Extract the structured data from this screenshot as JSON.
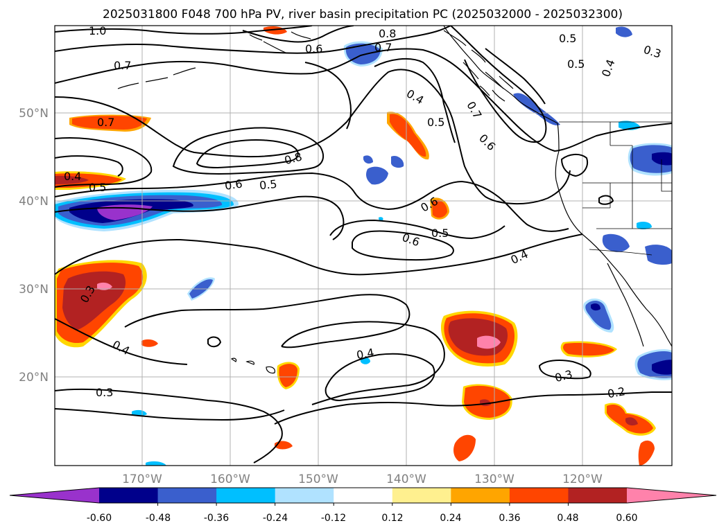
{
  "title": "2025031800 F048 700 hPa PV, river basin precipitation PC (2025032000 - 2025032300)",
  "longitude_labels": [
    "170°W",
    "160°W",
    "150°W",
    "140°W",
    "130°W",
    "120°W"
  ],
  "latitude_labels": [
    "50°N",
    "40°N",
    "30°N",
    "20°N"
  ],
  "colorbar": {
    "colors": [
      "#9932cc",
      "#00008b",
      "#3a5fcd",
      "#00bfff",
      "#b0e2ff",
      "#ffffff",
      "#fff08f",
      "#ffa500",
      "#ff4500",
      "#b22222",
      "#ff82ab"
    ],
    "tick_labels": [
      "-0.60",
      "-0.48",
      "-0.36",
      "-0.24",
      "-0.12",
      "0.12",
      "0.24",
      "0.36",
      "0.48",
      "0.60"
    ]
  },
  "contour_labels": [
    "1.0",
    "0.8",
    "0.5",
    "0.3",
    "0.6",
    "0.7",
    "0.5",
    "0.4",
    "0.7",
    "0.4",
    "0.5",
    "0.7",
    "0.7",
    "0.6",
    "0.8",
    "0.6",
    "0.5",
    "0.4",
    "0.5",
    "0.6",
    "0.5",
    "0.6",
    "0.4",
    "0.3",
    "0.4",
    "0.4",
    "0.3",
    "0.3",
    "0.2"
  ],
  "colors": {
    "contour": "#000000",
    "grid": "#b0b0b0",
    "axis_label": "#808080"
  }
}
